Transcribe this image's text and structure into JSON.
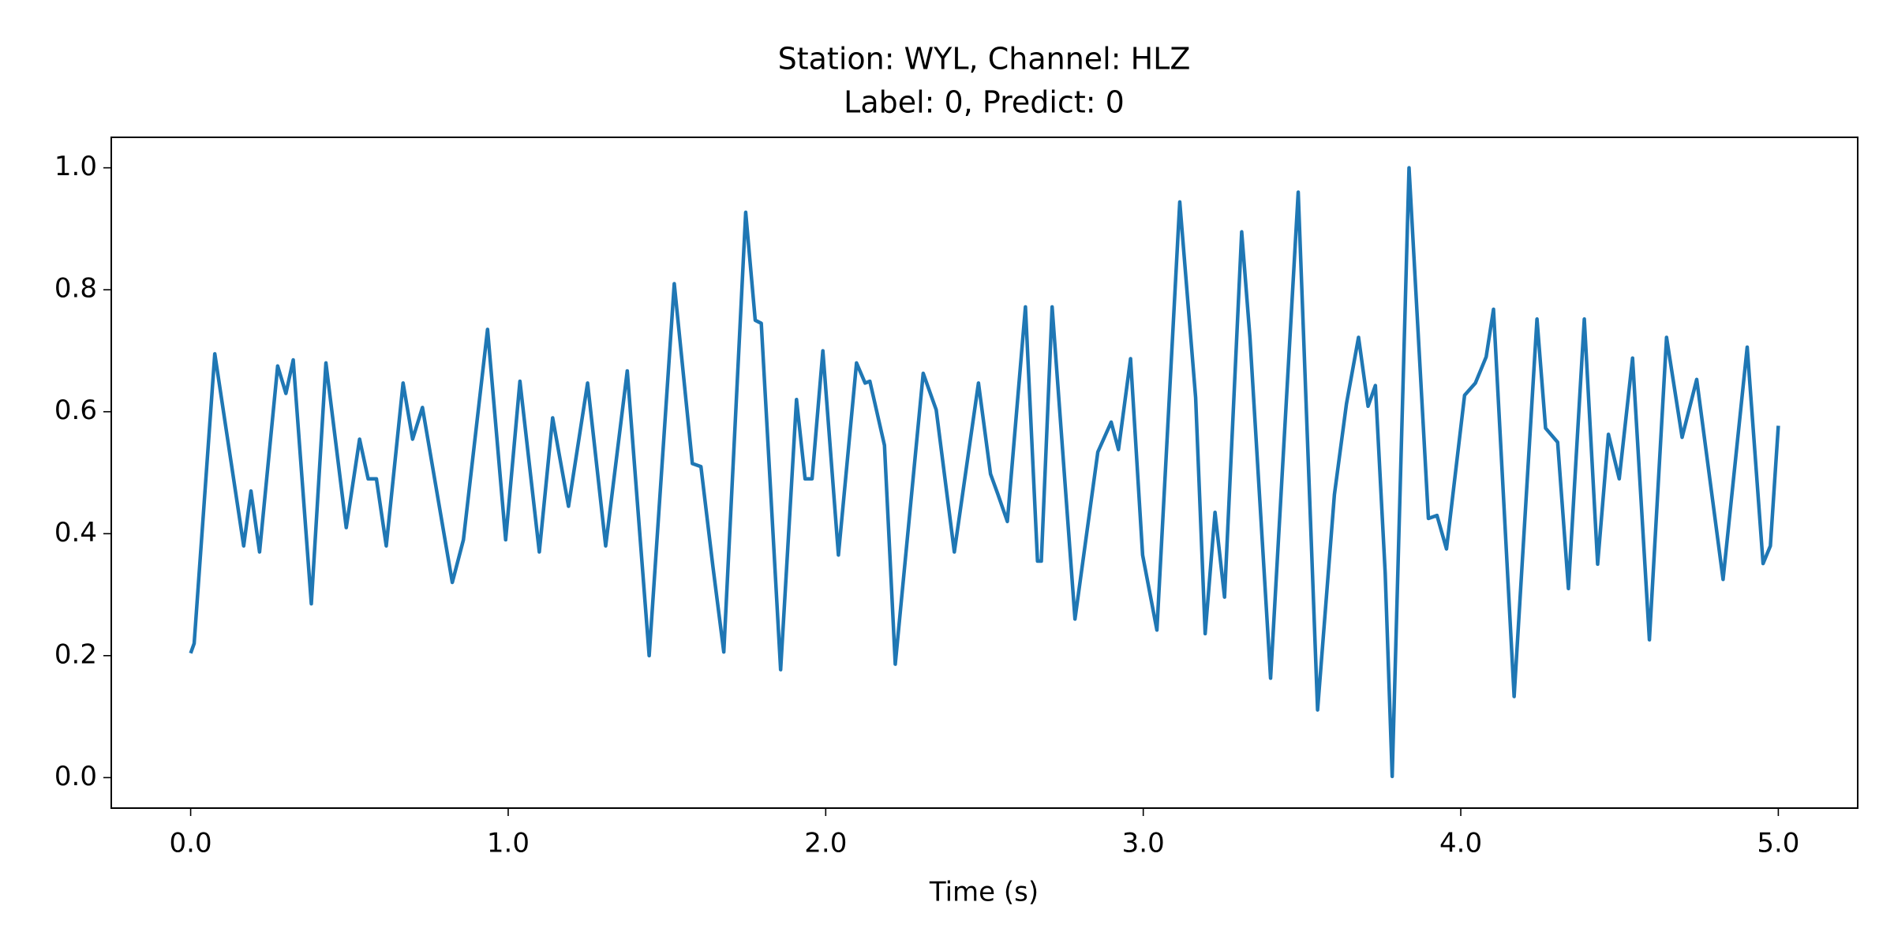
{
  "chart_data": {
    "type": "line",
    "title": "Station: WYL, Channel: HLZ",
    "subtitle": "Label: 0, Predict: 0",
    "x_label": "Time (s)",
    "color": "#1f77b4",
    "x": [
      0,
      0.011,
      0.076,
      0.167,
      0.19,
      0.217,
      0.274,
      0.3,
      0.323,
      0.38,
      0.426,
      0.49,
      0.532,
      0.559,
      0.585,
      0.616,
      0.669,
      0.699,
      0.73,
      0.824,
      0.859,
      0.935,
      0.992,
      1.037,
      1.098,
      1.14,
      1.19,
      1.25,
      1.307,
      1.375,
      1.444,
      1.523,
      1.58,
      1.607,
      1.645,
      1.679,
      1.748,
      1.778,
      1.797,
      1.858,
      1.908,
      1.935,
      1.957,
      1.991,
      2.04,
      2.097,
      2.124,
      2.139,
      2.185,
      2.219,
      2.307,
      2.348,
      2.405,
      2.481,
      2.519,
      2.542,
      2.572,
      2.629,
      2.667,
      2.679,
      2.713,
      2.785,
      2.857,
      2.899,
      2.922,
      2.96,
      2.998,
      3.043,
      3.115,
      3.165,
      3.195,
      3.226,
      3.256,
      3.31,
      3.336,
      3.401,
      3.488,
      3.549,
      3.602,
      3.64,
      3.678,
      3.708,
      3.731,
      3.762,
      3.784,
      3.837,
      3.898,
      3.925,
      3.955,
      4.012,
      4.046,
      4.08,
      4.103,
      4.168,
      4.24,
      4.267,
      4.305,
      4.339,
      4.389,
      4.431,
      4.465,
      4.499,
      4.541,
      4.594,
      4.648,
      4.697,
      4.743,
      4.826,
      4.902,
      4.952,
      4.975,
      5.0
    ],
    "values": [
      0.204,
      0.22,
      0.695,
      0.38,
      0.47,
      0.37,
      0.675,
      0.63,
      0.685,
      0.285,
      0.68,
      0.41,
      0.555,
      0.49,
      0.49,
      0.38,
      0.647,
      0.555,
      0.607,
      0.32,
      0.39,
      0.735,
      0.39,
      0.65,
      0.37,
      0.59,
      0.445,
      0.647,
      0.38,
      0.667,
      0.2,
      0.81,
      0.515,
      0.51,
      0.345,
      0.206,
      0.927,
      0.75,
      0.745,
      0.177,
      0.62,
      0.49,
      0.49,
      0.7,
      0.365,
      0.68,
      0.647,
      0.65,
      0.545,
      0.186,
      0.663,
      0.603,
      0.37,
      0.647,
      0.498,
      0.465,
      0.42,
      0.772,
      0.355,
      0.355,
      0.772,
      0.26,
      0.534,
      0.583,
      0.538,
      0.687,
      0.365,
      0.242,
      0.944,
      0.623,
      0.236,
      0.435,
      0.296,
      0.895,
      0.722,
      0.163,
      0.96,
      0.111,
      0.464,
      0.613,
      0.722,
      0.609,
      0.643,
      0.335,
      0.002,
      1.0,
      0.425,
      0.43,
      0.375,
      0.627,
      0.647,
      0.69,
      0.768,
      0.133,
      0.752,
      0.573,
      0.55,
      0.31,
      0.752,
      0.35,
      0.563,
      0.49,
      0.688,
      0.226,
      0.722,
      0.558,
      0.653,
      0.325,
      0.706,
      0.351,
      0.38,
      0.577
    ],
    "xlim": [
      -0.25,
      5.25
    ],
    "xticks": [
      {
        "value": 0,
        "label": "0.0"
      },
      {
        "value": 1,
        "label": "1.0"
      },
      {
        "value": 2,
        "label": "2.0"
      },
      {
        "value": 3,
        "label": "3.0"
      },
      {
        "value": 4,
        "label": "4.0"
      },
      {
        "value": 5,
        "label": "5.0"
      }
    ],
    "ylim": [
      -0.05,
      1.05
    ],
    "yticks": [
      {
        "value": 0,
        "label": "0.0"
      },
      0.2,
      0.4,
      0.6,
      0.8,
      {
        "value": 1,
        "label": "1.0"
      }
    ],
    "grid": false
  }
}
